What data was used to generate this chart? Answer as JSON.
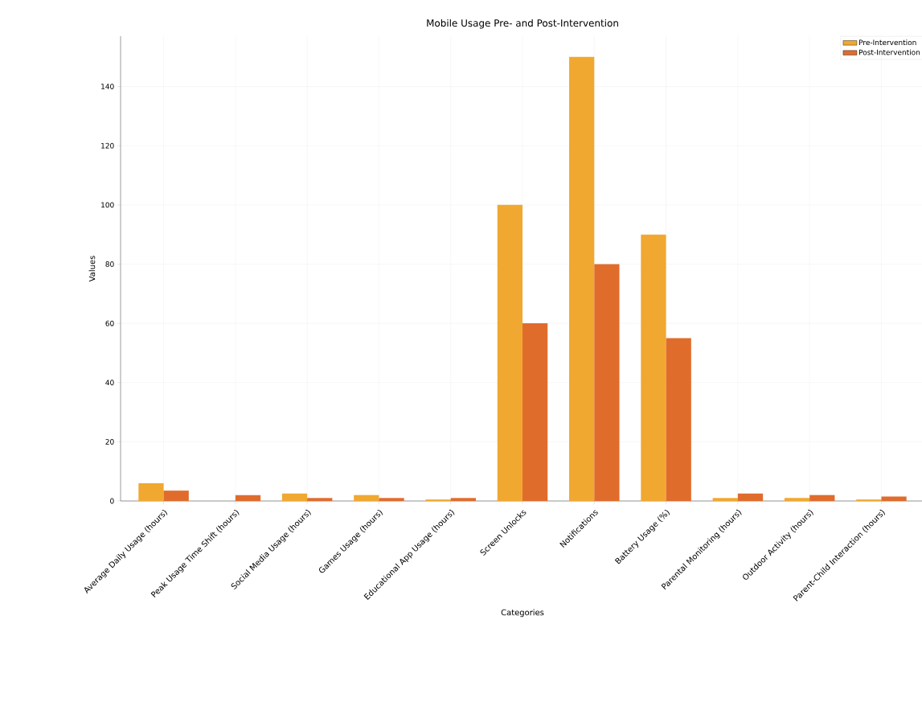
{
  "chart_data": {
    "type": "bar",
    "title": "Mobile Usage Pre- and Post-Intervention",
    "xlabel": "Categories",
    "ylabel": "Values",
    "categories": [
      "Average Daily Usage (hours)",
      "Peak Usage Time Shift (hours)",
      "Social Media Usage (hours)",
      "Games Usage (hours)",
      "Educational App Usage (hours)",
      "Screen Unlocks",
      "Notifications",
      "Battery Usage (%)",
      "Parental Monitoring (hours)",
      "Outdoor Activity (hours)",
      "Parent-Child Interaction (hours)"
    ],
    "series": [
      {
        "name": "Pre-Intervention",
        "color": "#f0a830",
        "values": [
          6,
          0,
          2.5,
          2,
          0.5,
          100,
          150,
          90,
          1,
          1,
          0.5
        ]
      },
      {
        "name": "Post-Intervention",
        "color": "#e06c2c",
        "values": [
          3.5,
          2,
          1,
          1,
          1,
          60,
          80,
          55,
          2.5,
          2,
          1.5
        ]
      }
    ],
    "ylim": [
      0,
      157
    ],
    "yticks": [
      0,
      20,
      40,
      60,
      80,
      100,
      120,
      140
    ],
    "grid": true,
    "legend": "top right"
  }
}
